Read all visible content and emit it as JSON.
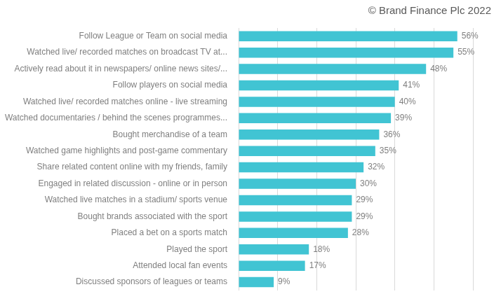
{
  "chart_data": {
    "type": "bar",
    "orientation": "horizontal",
    "annotations": [
      "© Brand Finance Plc 2022"
    ],
    "categories": [
      "Follow League or Team on social media",
      "Watched live/ recorded matches on broadcast TV at...",
      "Actively read about it in newspapers/ online news sites/...",
      "Follow players on social media",
      "Watched live/ recorded matches online - live streaming",
      "Watched documentaries / behind the scenes programmes...",
      "Bought merchandise of a team",
      "Watched game highlights and post-game commentary",
      "Share related content online with my friends, family",
      "Engaged in related discussion - online or in person",
      "Watched live matches in a stadium/ sports venue",
      "Bought brands associated with the sport",
      "Placed a bet on a sports match",
      "Played the sport",
      "Attended local fan events",
      "Discussed sponsors of leagues or teams"
    ],
    "values": [
      56,
      55,
      48,
      41,
      40,
      39,
      36,
      35,
      32,
      30,
      29,
      29,
      28,
      18,
      17,
      9
    ],
    "value_labels": [
      "56%",
      "55%",
      "48%",
      "41%",
      "40%",
      "39%",
      "36%",
      "35%",
      "32%",
      "30%",
      "29%",
      "29%",
      "28%",
      "18%",
      "17%",
      "9%"
    ],
    "color": "#41c4d3",
    "xlim": [
      0,
      60
    ],
    "xticks": [
      0,
      10,
      20,
      30,
      40,
      50,
      60
    ],
    "grid": true,
    "data_labels": true,
    "tick_labels": "y"
  }
}
